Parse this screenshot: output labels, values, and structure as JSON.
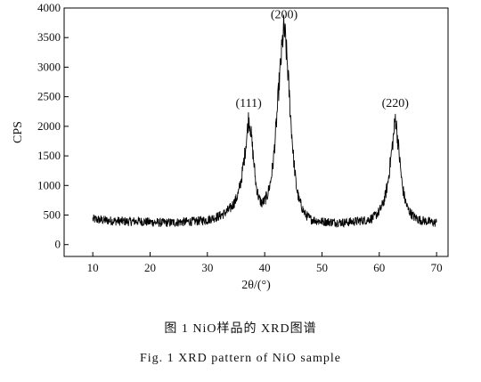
{
  "chart_data": {
    "type": "line",
    "title": "",
    "xlabel": "2θ/(°)",
    "ylabel": "CPS",
    "xlim": [
      5,
      72
    ],
    "ylim": [
      -200,
      4000
    ],
    "xticks": [
      10,
      20,
      30,
      40,
      50,
      60,
      70
    ],
    "yticks": [
      0,
      500,
      1000,
      1500,
      2000,
      2500,
      3000,
      3500,
      4000
    ],
    "grid": false,
    "line_color": "#000000",
    "series": [
      {
        "x": [
          10,
          12,
          14,
          16,
          18,
          20,
          22,
          24,
          26,
          28,
          30,
          32,
          33,
          34,
          35,
          35.5,
          36,
          36.5,
          37,
          37.2,
          37.5,
          38,
          38.5,
          39,
          39.5,
          40,
          40.5,
          41,
          41.5,
          42,
          42.5,
          43,
          43.3,
          43.6,
          44,
          44.5,
          45,
          45.5,
          46,
          47,
          48,
          50,
          52,
          54,
          56,
          58,
          59,
          60,
          60.5,
          61,
          61.5,
          62,
          62.5,
          62.8,
          63,
          63.5,
          64,
          64.5,
          65,
          66,
          67,
          68,
          69,
          70
        ],
        "y": [
          430,
          410,
          400,
          390,
          395,
          380,
          370,
          375,
          385,
          395,
          420,
          480,
          530,
          610,
          760,
          900,
          1150,
          1500,
          1950,
          2150,
          2000,
          1500,
          1000,
          780,
          700,
          740,
          850,
          1050,
          1400,
          2000,
          2700,
          3300,
          3650,
          3500,
          3000,
          2200,
          1500,
          1000,
          750,
          520,
          430,
          390,
          380,
          375,
          395,
          420,
          460,
          560,
          660,
          800,
          1050,
          1450,
          1850,
          2150,
          2000,
          1500,
          1000,
          750,
          600,
          470,
          420,
          400,
          380,
          370
        ]
      }
    ],
    "annotations": [
      {
        "text": "(111)",
        "x": 37.2,
        "y": 2150
      },
      {
        "text": "(200)",
        "x": 43.4,
        "y": 3650
      },
      {
        "text": "(220)",
        "x": 62.8,
        "y": 2150
      }
    ]
  },
  "captions": {
    "chinese": "图 1  NiO样品的 XRD图谱",
    "english": "Fig. 1  XRD pattern of NiO sample"
  }
}
